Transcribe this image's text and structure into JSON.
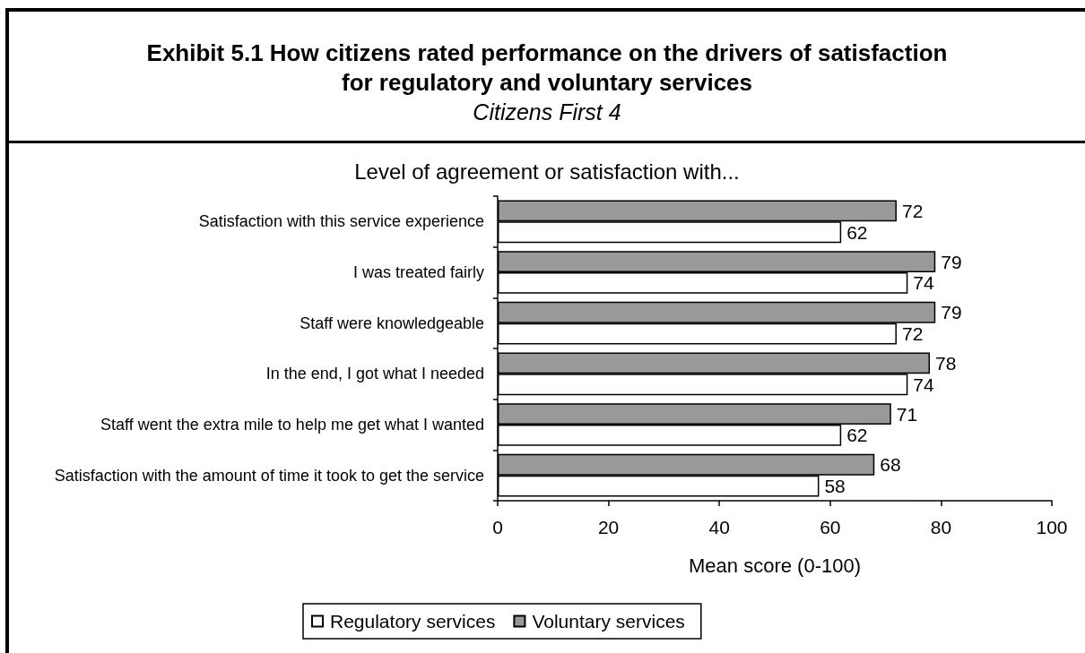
{
  "chart_data": {
    "type": "bar",
    "orientation": "horizontal",
    "title": "Exhibit 5.1 How citizens rated performance on the drivers of satisfaction for regulatory and voluntary services",
    "subtitle": "Citizens First 4",
    "ylabel": "Level of agreement or satisfaction with...",
    "xlabel": "Mean score (0-100)",
    "categories": [
      "Satisfaction with this service experience",
      "I was treated fairly",
      "Staff were knowledgeable",
      "In the end, I got what I needed",
      "Staff went the extra mile to help me get what I wanted",
      "Satisfaction with the amount of time it took to get the service"
    ],
    "series": [
      {
        "name": "Regulatory services",
        "color": "#ffffff",
        "values": [
          62,
          74,
          72,
          74,
          62,
          58
        ]
      },
      {
        "name": "Voluntary services",
        "color": "#999999",
        "values": [
          72,
          79,
          79,
          78,
          71,
          68
        ]
      }
    ],
    "xlim": [
      0,
      100
    ],
    "xticks": [
      0,
      20,
      40,
      60,
      80,
      100
    ],
    "data_labels": true,
    "grid": false,
    "legend": "bottom"
  }
}
